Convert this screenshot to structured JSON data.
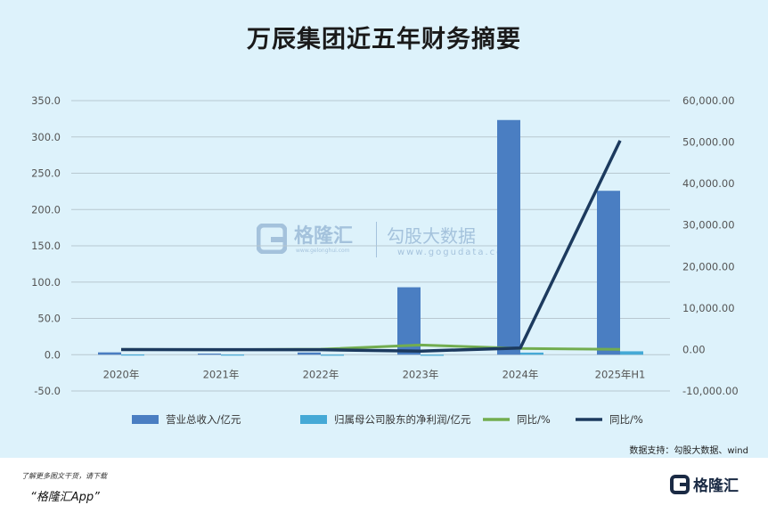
{
  "chart_data": {
    "type": "bar",
    "title": "万辰集团近五年财务摘要",
    "categories": [
      "2020年",
      "2021年",
      "2022年",
      "2023年",
      "2024年",
      "2025年H1"
    ],
    "left_axis": {
      "ylim": [
        -50,
        350
      ],
      "ticks": [
        "-50.0",
        "0.0",
        "50.0",
        "100.0",
        "150.0",
        "200.0",
        "250.0",
        "300.0",
        "350.0"
      ]
    },
    "right_axis": {
      "ylim": [
        -10000,
        60000
      ],
      "ticks": [
        "-10,000.00",
        "0.00",
        "10,000.00",
        "20,000.00",
        "30,000.00",
        "40,000.00",
        "50,000.00",
        "60,000.00"
      ]
    },
    "grid": true,
    "legend_position": "bottom",
    "series": [
      {
        "name": "营业总收入/亿元",
        "type": "bar",
        "axis": "left",
        "color": "#4a7ec2",
        "values": [
          3.2,
          1.5,
          3.0,
          92.9,
          323.3,
          225.8
        ]
      },
      {
        "name": "归属母公司股东的净利润/亿元",
        "type": "bar",
        "axis": "left",
        "color": "#45a9d6",
        "values": [
          0.3,
          0.2,
          0.1,
          -0.8,
          2.9,
          4.7
        ]
      },
      {
        "name": "同比/%",
        "type": "line",
        "axis": "right",
        "color": "#72ad4f",
        "values": [
          5,
          -52,
          55,
          1080,
          248,
          50
        ]
      },
      {
        "name": "同比/%",
        "type": "line",
        "axis": "right",
        "color": "#1c3a5e",
        "values": [
          -15,
          -30,
          -50,
          -380,
          360,
          50359
        ]
      }
    ]
  },
  "source": "数据支持：勾股大数据、wind",
  "watermark": {
    "brand": "格隆汇",
    "brand_sub": "www.gelonghui.com",
    "site": "勾股大数据",
    "site_sub": "www.gogudata.com"
  },
  "footer": {
    "note": "了解更多图文干货，请下载",
    "app": "“格隆汇App”",
    "logo_text": "格隆汇"
  },
  "colors": {
    "background": "#ddf2fb",
    "grid": "#b8c8d0"
  }
}
